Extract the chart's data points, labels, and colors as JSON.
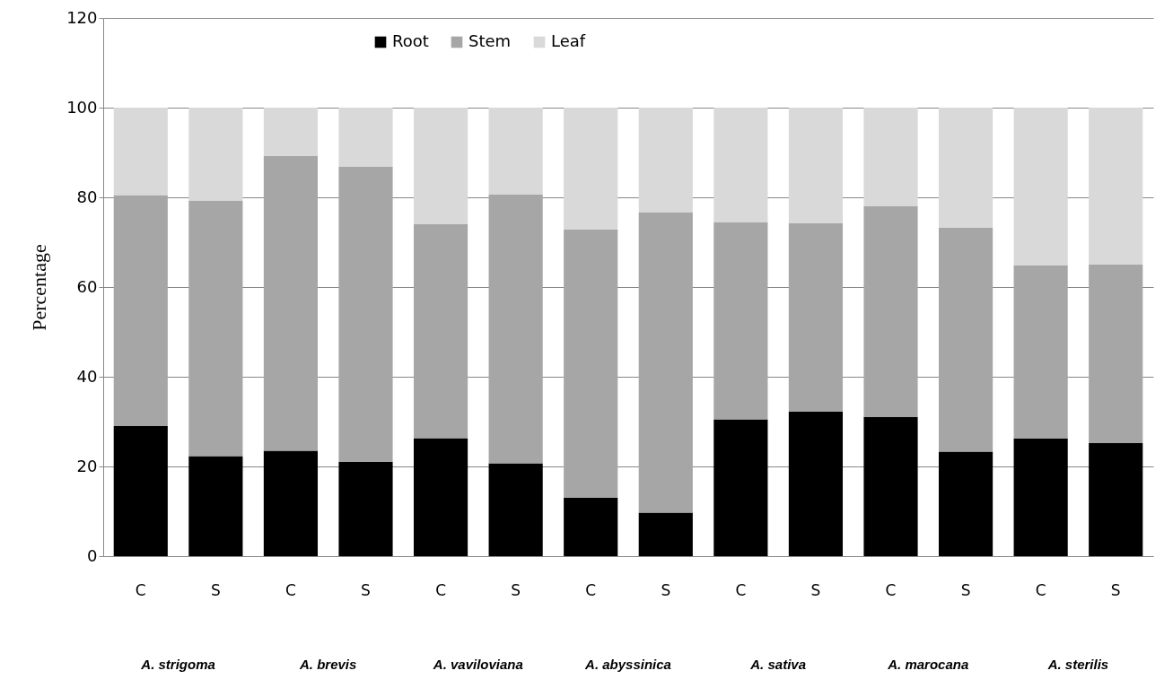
{
  "chart_data": {
    "type": "bar",
    "stacked": true,
    "ylabel": "Percentage",
    "categories": [
      "C",
      "S",
      "C",
      "S",
      "C",
      "S",
      "C",
      "S",
      "C",
      "S",
      "C",
      "S",
      "C",
      "S"
    ],
    "series": [
      {
        "name": "Root",
        "color": "#000000",
        "values": [
          29,
          22.3,
          23.5,
          21,
          26.3,
          20.7,
          13,
          9.7,
          30.5,
          32.2,
          31,
          23.3,
          26.2,
          25.2
        ]
      },
      {
        "name": "Stem",
        "color": "#a6a6a6",
        "values": [
          51.5,
          57,
          65.7,
          65.8,
          47.7,
          59.9,
          59.8,
          67,
          44,
          42,
          47,
          49.9,
          38.6,
          39.8
        ]
      },
      {
        "name": "Leaf",
        "color": "#d9d9d9",
        "values": [
          19.5,
          20.7,
          10.8,
          13.2,
          26,
          19.4,
          27.2,
          23.3,
          25.5,
          25.8,
          22,
          26.8,
          35.2,
          35
        ]
      }
    ],
    "annotations": [
      "A. strigoma",
      "A. brevis",
      "A. vaviloviana",
      "A. abyssinica",
      "A. sativa",
      "A. marocana",
      "A. sterilis"
    ],
    "ylim": [
      0,
      120
    ],
    "yticks": [
      0,
      20,
      40,
      60,
      80,
      100,
      120
    ],
    "grid": "y",
    "legend": "top"
  }
}
